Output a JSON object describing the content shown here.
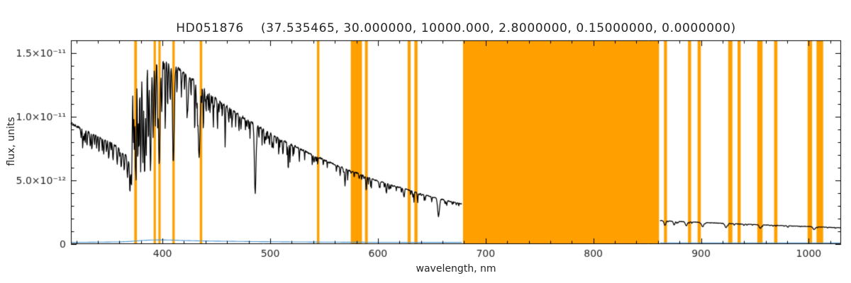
{
  "chart_data": {
    "type": "line",
    "title": "HD051876    (37.535465, 30.000000, 10000.000, 2.8000000, 0.15000000, 0.0000000)",
    "xlabel": "wavelength, nm",
    "ylabel": "flux, units",
    "xlim": [
      315,
      1030
    ],
    "x_ticks": [
      400,
      500,
      600,
      700,
      800,
      900,
      1000
    ],
    "x_tick_labels": [
      "400",
      "500",
      "600",
      "700",
      "800",
      "900",
      "1000"
    ],
    "x_minor_step": 20,
    "y_scale": 1e-12,
    "ylim": [
      0,
      16
    ],
    "y_ticks": [
      0,
      5,
      10,
      15
    ],
    "y_tick_labels": [
      "0",
      "5.0×10⁻¹²",
      "1.0×10⁻¹¹",
      "1.5×10⁻¹¹"
    ],
    "y_minor_step": 1,
    "grid": false,
    "legend": null,
    "colors": {
      "spectrum": "#000000",
      "error": "#4e96d1",
      "mask": "#ffa000",
      "axis": "#000000",
      "text": "#262626",
      "background": "#ffffff"
    },
    "masked_bands_nm": [
      [
        373.8,
        376.3
      ],
      [
        391.8,
        393.9
      ],
      [
        396.2,
        398.3
      ],
      [
        409.2,
        411.4
      ],
      [
        434.6,
        436.9
      ],
      [
        543.4,
        545.7
      ],
      [
        574.8,
        585.2
      ],
      [
        588.0,
        590.6
      ],
      [
        627.6,
        630.4
      ],
      [
        633.9,
        636.8
      ],
      [
        679.0,
        861.0
      ],
      [
        865.6,
        868.4
      ],
      [
        887.9,
        890.8
      ],
      [
        896.8,
        899.8
      ],
      [
        925.2,
        929.1
      ],
      [
        933.9,
        936.8
      ],
      [
        952.2,
        957.1
      ],
      [
        967.8,
        970.9
      ],
      [
        998.9,
        1003.1
      ],
      [
        1007.2,
        1013.4
      ]
    ],
    "series": [
      {
        "name": "stellar-spectrum",
        "render": "spectrum",
        "color_key": "spectrum",
        "segments": [
          [
            315,
            678
          ],
          [
            862,
            1030
          ]
        ],
        "continuum": [
          [
            315,
            9.5
          ],
          [
            322,
            9.15
          ],
          [
            329,
            8.9
          ],
          [
            336,
            8.65
          ],
          [
            343,
            8.35
          ],
          [
            350,
            8.05
          ],
          [
            356,
            7.75
          ],
          [
            361,
            7.45
          ],
          [
            365,
            7.15
          ],
          [
            368,
            6.9
          ],
          [
            370,
            6.65
          ],
          [
            371.5,
            6.4
          ],
          [
            372.2,
            12.8
          ],
          [
            373.5,
            13.4
          ],
          [
            375.5,
            13.8
          ],
          [
            378,
            14.05
          ],
          [
            381,
            14.2
          ],
          [
            385,
            14.3
          ],
          [
            390,
            14.35
          ],
          [
            395,
            14.4
          ],
          [
            400,
            14.35
          ],
          [
            405,
            14.2
          ],
          [
            410,
            14.05
          ],
          [
            415,
            13.8
          ],
          [
            420,
            13.45
          ],
          [
            426,
            13.05
          ],
          [
            432,
            12.65
          ],
          [
            438,
            12.2
          ],
          [
            444,
            11.8
          ],
          [
            450,
            11.4
          ],
          [
            458,
            10.9
          ],
          [
            466,
            10.45
          ],
          [
            474,
            10.0
          ],
          [
            482,
            9.6
          ],
          [
            490,
            9.2
          ],
          [
            500,
            8.7
          ],
          [
            510,
            8.25
          ],
          [
            520,
            7.8
          ],
          [
            530,
            7.4
          ],
          [
            540,
            7.0
          ],
          [
            550,
            6.6
          ],
          [
            560,
            6.25
          ],
          [
            570,
            5.9
          ],
          [
            580,
            5.6
          ],
          [
            590,
            5.25
          ],
          [
            600,
            4.95
          ],
          [
            610,
            4.7
          ],
          [
            620,
            4.45
          ],
          [
            630,
            4.2
          ],
          [
            640,
            3.95
          ],
          [
            650,
            3.7
          ],
          [
            660,
            3.5
          ],
          [
            670,
            3.3
          ],
          [
            678,
            3.15
          ],
          [
            862,
            1.85
          ],
          [
            880,
            1.78
          ],
          [
            900,
            1.7
          ],
          [
            920,
            1.63
          ],
          [
            940,
            1.56
          ],
          [
            960,
            1.5
          ],
          [
            980,
            1.44
          ],
          [
            1000,
            1.38
          ],
          [
            1015,
            1.33
          ],
          [
            1030,
            1.28
          ]
        ],
        "absorption_lines": [
          [
            656.3,
            0.38,
            2.0
          ],
          [
            486.1,
            0.58,
            1.7
          ],
          [
            434.0,
            0.46,
            2.0
          ],
          [
            410.2,
            0.5,
            1.9
          ],
          [
            397.0,
            0.57,
            1.7
          ],
          [
            393.4,
            0.36,
            1.0
          ],
          [
            391.2,
            0.4,
            0.9
          ],
          [
            388.9,
            0.6,
            1.5
          ],
          [
            386.9,
            0.44,
            0.9
          ],
          [
            385.0,
            0.5,
            0.9
          ],
          [
            383.5,
            0.6,
            1.3
          ],
          [
            381.8,
            0.52,
            1.0
          ],
          [
            379.8,
            0.58,
            1.1
          ],
          [
            378.2,
            0.46,
            0.8
          ],
          [
            377.1,
            0.55,
            0.9
          ],
          [
            375.6,
            0.48,
            0.8
          ],
          [
            374.9,
            0.52,
            0.8
          ],
          [
            373.9,
            0.46,
            0.7
          ],
          [
            373.0,
            0.4,
            0.7
          ],
          [
            395.5,
            0.3,
            0.7
          ],
          [
            399.3,
            0.28,
            0.7
          ],
          [
            402.5,
            0.22,
            0.7
          ],
          [
            404.8,
            0.26,
            0.7
          ],
          [
            407.3,
            0.2,
            0.6
          ],
          [
            413.5,
            0.16,
            0.6
          ],
          [
            417.5,
            0.14,
            0.6
          ],
          [
            420.5,
            0.12,
            0.5
          ],
          [
            422.7,
            0.2,
            0.6
          ],
          [
            426.5,
            0.13,
            0.5
          ],
          [
            430.0,
            0.22,
            0.7
          ],
          [
            432.6,
            0.15,
            0.5
          ],
          [
            438.0,
            0.28,
            0.7
          ],
          [
            440.5,
            0.16,
            0.5
          ],
          [
            444.0,
            0.12,
            0.5
          ],
          [
            447.2,
            0.22,
            0.6
          ],
          [
            451.0,
            0.12,
            0.5
          ],
          [
            455.5,
            0.12,
            0.5
          ],
          [
            458.2,
            0.3,
            0.7
          ],
          [
            461.5,
            0.14,
            0.5
          ],
          [
            464.5,
            0.12,
            0.5
          ],
          [
            468.0,
            0.12,
            0.5
          ],
          [
            473.0,
            0.1,
            0.5
          ],
          [
            477.0,
            0.1,
            0.5
          ],
          [
            481.2,
            0.14,
            0.5
          ],
          [
            489.5,
            0.12,
            0.5
          ],
          [
            492.5,
            0.14,
            0.5
          ],
          [
            495.8,
            0.1,
            0.5
          ],
          [
            501.6,
            0.13,
            0.5
          ],
          [
            508.0,
            0.1,
            0.5
          ],
          [
            512.0,
            0.1,
            0.5
          ],
          [
            516.8,
            0.22,
            0.8
          ],
          [
            518.4,
            0.18,
            0.6
          ],
          [
            522.0,
            0.1,
            0.5
          ],
          [
            527.0,
            0.14,
            0.6
          ],
          [
            532.0,
            0.1,
            0.5
          ],
          [
            539.0,
            0.1,
            0.5
          ],
          [
            544.0,
            0.09,
            0.5
          ],
          [
            553.0,
            0.08,
            0.5
          ],
          [
            561.5,
            0.08,
            0.5
          ],
          [
            570.0,
            0.08,
            0.5
          ],
          [
            578.0,
            0.09,
            0.5
          ],
          [
            585.0,
            0.08,
            0.5
          ],
          [
            589.2,
            0.22,
            0.8
          ],
          [
            594.0,
            0.07,
            0.5
          ],
          [
            602.0,
            0.07,
            0.5
          ],
          [
            610.0,
            0.08,
            0.5
          ],
          [
            617.0,
            0.07,
            0.5
          ],
          [
            624.0,
            0.08,
            0.5
          ],
          [
            630.5,
            0.09,
            0.5
          ],
          [
            637.0,
            0.08,
            0.5
          ],
          [
            644.0,
            0.09,
            0.5
          ],
          [
            650.0,
            0.1,
            0.6
          ],
          [
            663.0,
            0.08,
            0.5
          ],
          [
            669.0,
            0.08,
            0.5
          ],
          [
            675.0,
            0.07,
            0.5
          ],
          [
            327.0,
            0.1,
            0.8
          ],
          [
            333.0,
            0.12,
            0.8
          ],
          [
            337.0,
            0.1,
            0.7
          ],
          [
            341.0,
            0.1,
            0.8
          ],
          [
            345.5,
            0.14,
            0.9
          ],
          [
            350.0,
            0.16,
            0.9
          ],
          [
            354.0,
            0.12,
            0.8
          ],
          [
            358.0,
            0.18,
            1.0
          ],
          [
            361.5,
            0.15,
            0.9
          ],
          [
            364.5,
            0.2,
            1.0
          ],
          [
            367.5,
            0.24,
            1.1
          ],
          [
            369.8,
            0.28,
            1.1
          ],
          [
            371.2,
            0.3,
            0.9
          ],
          [
            866.5,
            0.2,
            2.0
          ],
          [
            875.0,
            0.16,
            1.8
          ],
          [
            886.3,
            0.18,
            2.0
          ],
          [
            901.5,
            0.2,
            2.2
          ],
          [
            923.2,
            0.2,
            2.4
          ],
          [
            955.0,
            0.18,
            2.4
          ],
          [
            1005.0,
            0.16,
            2.6
          ]
        ],
        "micro_lines": [
          {
            "seed": 77001,
            "count": 120,
            "range": [
              324,
              676
            ],
            "depth_range": [
              0.02,
              0.13
            ],
            "width_range": [
              0.35,
              0.9
            ]
          },
          {
            "seed": 77002,
            "count": 26,
            "range": [
              864,
              1028
            ],
            "depth_range": [
              0.02,
              0.07
            ],
            "width_range": [
              0.5,
              1.2
            ]
          }
        ],
        "noise": {
          "seed": 1234,
          "amplitude": 0.01,
          "step": 0.35
        }
      },
      {
        "name": "error-spectrum",
        "render": "polyline",
        "color_key": "error",
        "segments": [
          [
            315,
            678
          ],
          [
            862,
            1030
          ]
        ],
        "points": [
          [
            315,
            0.13
          ],
          [
            340,
            0.15
          ],
          [
            360,
            0.17
          ],
          [
            372,
            0.22
          ],
          [
            380,
            0.28
          ],
          [
            390,
            0.32
          ],
          [
            400,
            0.33
          ],
          [
            410,
            0.31
          ],
          [
            420,
            0.28
          ],
          [
            435,
            0.25
          ],
          [
            450,
            0.23
          ],
          [
            470,
            0.21
          ],
          [
            490,
            0.19
          ],
          [
            520,
            0.17
          ],
          [
            560,
            0.15
          ],
          [
            600,
            0.14
          ],
          [
            640,
            0.13
          ],
          [
            678,
            0.13
          ],
          [
            862,
            0.1
          ],
          [
            920,
            0.1
          ],
          [
            980,
            0.1
          ],
          [
            1030,
            0.1
          ]
        ]
      }
    ]
  }
}
